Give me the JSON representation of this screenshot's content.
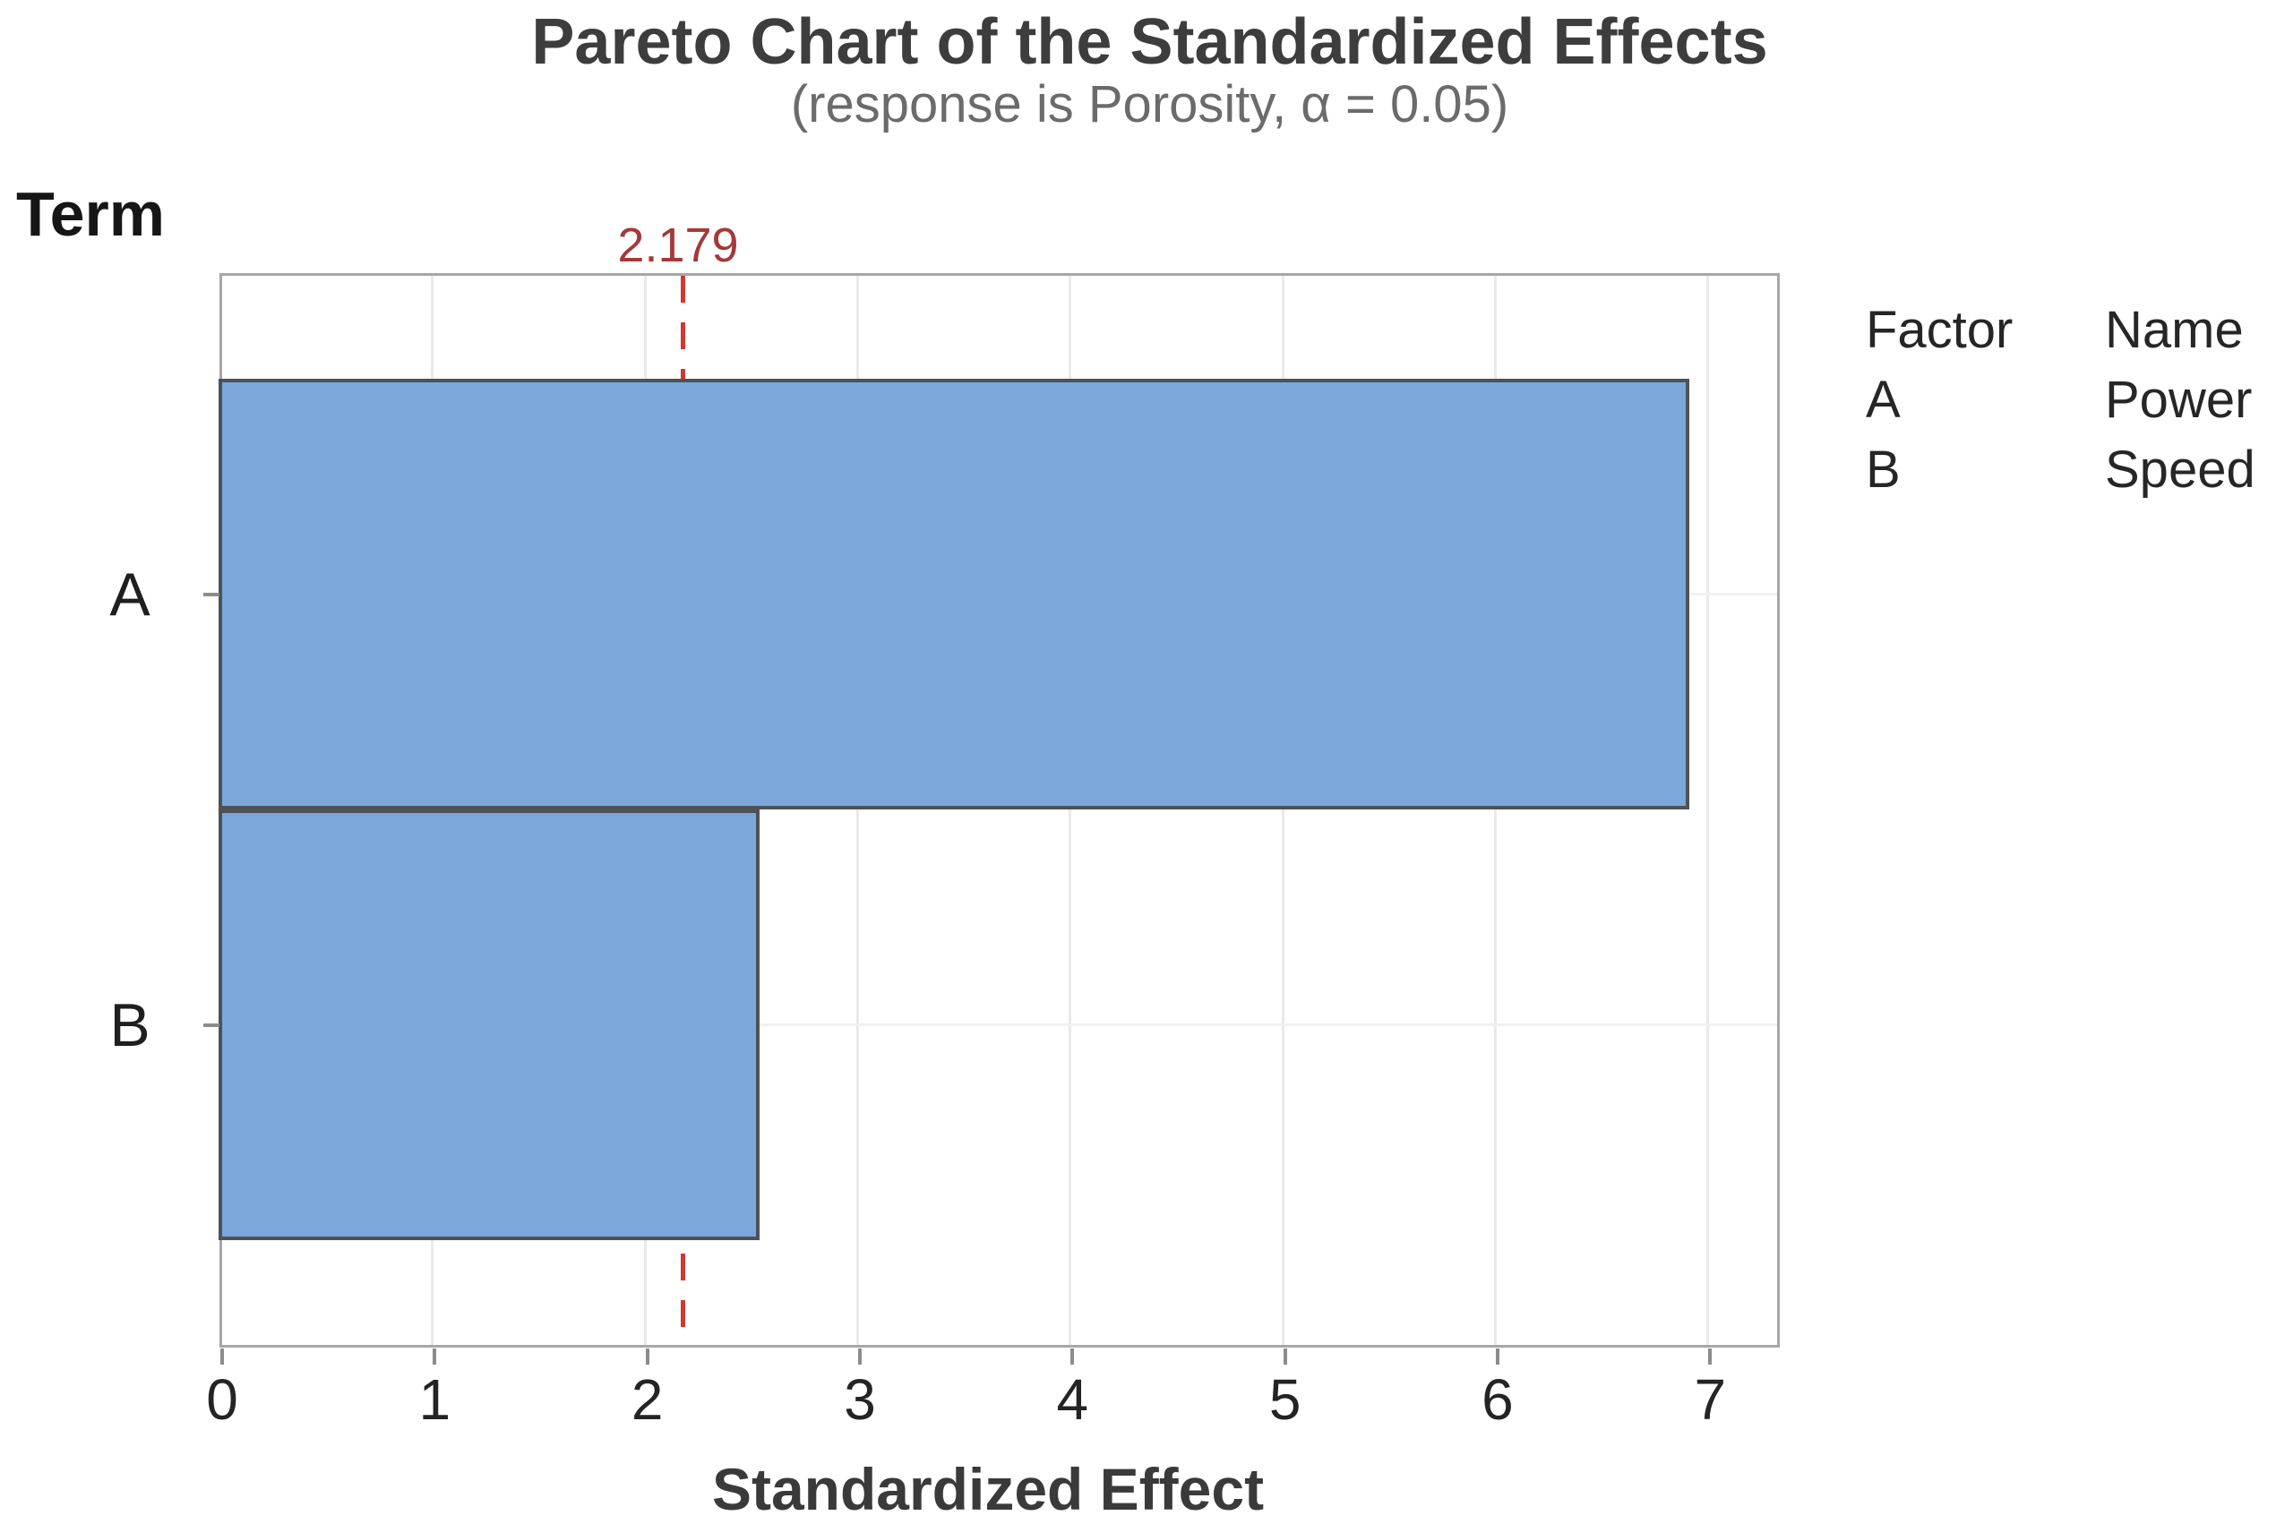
{
  "chart_data": {
    "type": "bar",
    "orientation": "horizontal",
    "title": "Pareto Chart of the Standardized Effects",
    "subtitle": "(response is Porosity, α = 0.05)",
    "response": "Porosity",
    "alpha": "0.05",
    "xlabel": "Standardized Effect",
    "ylabel": "Term",
    "categories": [
      "A",
      "B"
    ],
    "values": [
      6.9,
      2.53
    ],
    "x_ticks": [
      0,
      1,
      2,
      3,
      4,
      5,
      6,
      7
    ],
    "xlim": [
      0,
      7.34
    ],
    "grid": "light vertical gridlines at integer ticks; faint horizontal gridlines at category centers",
    "reference_line": {
      "value": 2.179,
      "label": "2.179",
      "style": "dashed"
    },
    "legend": {
      "headers": [
        "Factor",
        "Name"
      ],
      "rows": [
        [
          "A",
          "Power"
        ],
        [
          "B",
          "Speed"
        ]
      ],
      "position": "right"
    },
    "colors": {
      "bar_fill": "#7CA7DB",
      "bar_edge": "#4E5257",
      "reference_line": "#D23832",
      "reference_label": "#A43939",
      "plot_border": "#A7A7A7",
      "vertical_gridline": "#EAEAEA",
      "horizontal_gridline": "#F1F1F1",
      "tick_mark": "#8C8C8C",
      "tick_label": "#242424",
      "title": "#3D3D3D",
      "subtitle": "#6B6B6B",
      "axis_title": "#3A3A3A",
      "legend_text": "#262626"
    }
  }
}
